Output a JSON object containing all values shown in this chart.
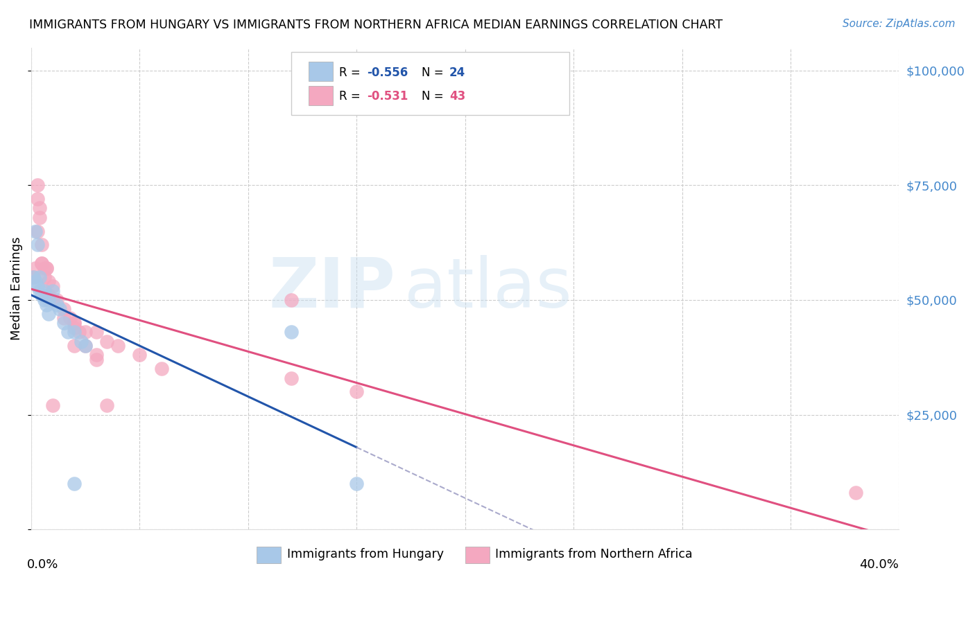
{
  "title": "IMMIGRANTS FROM HUNGARY VS IMMIGRANTS FROM NORTHERN AFRICA MEDIAN EARNINGS CORRELATION CHART",
  "source": "Source: ZipAtlas.com",
  "ylabel": "Median Earnings",
  "xlim": [
    0.0,
    0.4
  ],
  "ylim": [
    0,
    105000
  ],
  "hungary_color": "#a8c8e8",
  "northern_africa_color": "#f4a8c0",
  "hungary_line_color": "#2255aa",
  "africa_line_color": "#e05080",
  "legend_r_hungary": "-0.556",
  "legend_n_hungary": "24",
  "legend_r_africa": "-0.531",
  "legend_n_africa": "43",
  "hungary_x": [
    0.001,
    0.002,
    0.003,
    0.004,
    0.005,
    0.006,
    0.007,
    0.008,
    0.01,
    0.012,
    0.013,
    0.015,
    0.017,
    0.02,
    0.023,
    0.025,
    0.002,
    0.003,
    0.004,
    0.006,
    0.008,
    0.12,
    0.15,
    0.02
  ],
  "hungary_y": [
    55000,
    54000,
    53000,
    52000,
    51000,
    50000,
    49000,
    50000,
    52000,
    49000,
    48000,
    45000,
    43000,
    43000,
    41000,
    40000,
    65000,
    62000,
    55000,
    52000,
    47000,
    43000,
    10000,
    10000
  ],
  "africa_x": [
    0.001,
    0.002,
    0.003,
    0.004,
    0.005,
    0.006,
    0.007,
    0.008,
    0.01,
    0.012,
    0.015,
    0.018,
    0.02,
    0.022,
    0.025,
    0.03,
    0.035,
    0.04,
    0.05,
    0.06,
    0.12,
    0.15,
    0.003,
    0.004,
    0.005,
    0.006,
    0.008,
    0.01,
    0.015,
    0.02,
    0.025,
    0.03,
    0.38,
    0.01,
    0.02,
    0.035,
    0.12,
    0.003,
    0.005,
    0.007,
    0.01,
    0.02,
    0.03
  ],
  "africa_y": [
    55000,
    57000,
    72000,
    70000,
    62000,
    57000,
    57000,
    54000,
    53000,
    50000,
    48000,
    46000,
    44000,
    43000,
    43000,
    43000,
    41000,
    40000,
    38000,
    35000,
    33000,
    30000,
    75000,
    68000,
    58000,
    55000,
    51000,
    50000,
    46000,
    45000,
    40000,
    38000,
    8000,
    27000,
    40000,
    27000,
    50000,
    65000,
    58000,
    57000,
    50000,
    45000,
    37000
  ],
  "yticks": [
    0,
    25000,
    50000,
    75000,
    100000
  ],
  "ytick_labels_right": [
    "",
    "$25,000",
    "$50,000",
    "$75,000",
    "$100,000"
  ]
}
